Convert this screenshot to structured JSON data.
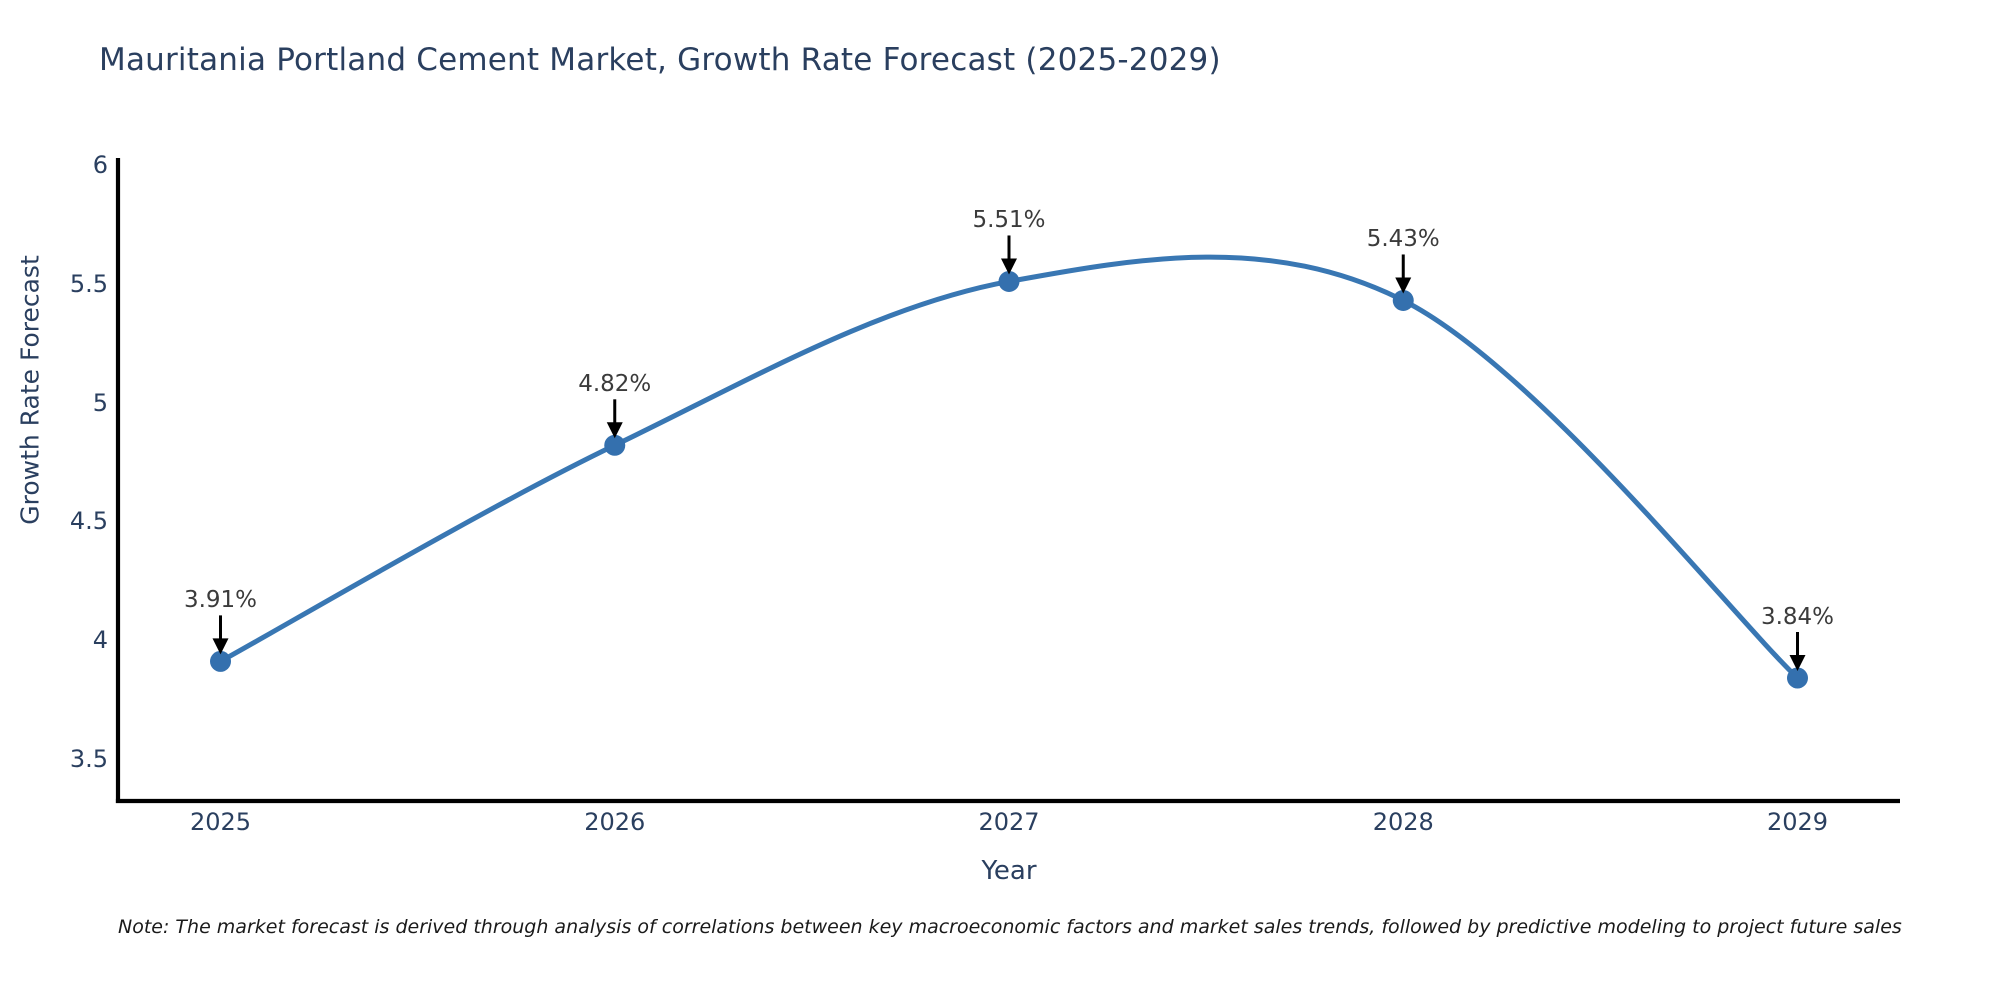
{
  "chart_data": {
    "type": "line",
    "title": "Mauritania Portland Cement Market, Growth Rate Forecast (2025-2029)",
    "xlabel": "Year",
    "ylabel": "Growth Rate Forecast",
    "x": [
      2025,
      2026,
      2027,
      2028,
      2029
    ],
    "y": [
      3.91,
      4.82,
      5.51,
      5.43,
      3.84
    ],
    "series": [
      {
        "name": "Growth Rate Forecast",
        "values": [
          3.91,
          4.82,
          5.51,
          5.43,
          3.84
        ]
      }
    ],
    "annotations": [
      "3.91%",
      "4.82%",
      "5.51%",
      "5.43%",
      "3.84%"
    ],
    "xticks": [
      "2025",
      "2026",
      "2027",
      "2028",
      "2029"
    ],
    "yticks": [
      "3.5",
      "4",
      "4.5",
      "5",
      "5.5",
      "6"
    ],
    "ytick_values": [
      3.5,
      4,
      4.5,
      5,
      5.5,
      6
    ],
    "xlim": [
      2024.74,
      2029.26
    ],
    "ylim": [
      3.322,
      6.03
    ],
    "line_shape": "spline",
    "line_color": "#3977b3",
    "marker_color": "#3470ae",
    "arrow_color": "#000000",
    "axis_color": "#000000",
    "text_color": "#2a3f5f",
    "grid": false,
    "legend": false
  },
  "note": "Note: The market forecast is derived through analysis of correlations between key macroeconomic factors and market sales trends, followed by predictive modeling to project future sales"
}
